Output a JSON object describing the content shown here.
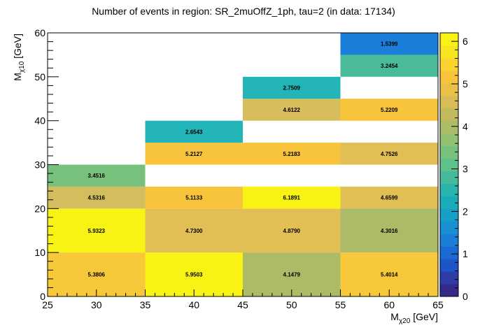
{
  "chart_data": {
    "type": "heatmap",
    "title": "Number of events in region: SR_2muOffZ_1ph, tau=2 (in data: 17134)",
    "xlabel": {
      "main": "M",
      "sub": "χ20",
      "unit": " [GeV]"
    },
    "ylabel": {
      "main": "M",
      "sub": "χ10",
      "unit": " [GeV]"
    },
    "xlim": [
      25,
      65
    ],
    "ylim": [
      0,
      60
    ],
    "zlim": [
      0,
      6.2
    ],
    "x_ticks": [
      "25",
      "30",
      "35",
      "40",
      "45",
      "50",
      "55",
      "60",
      "65"
    ],
    "y_ticks": [
      "0",
      "10",
      "20",
      "30",
      "40",
      "50",
      "60"
    ],
    "z_ticks": [
      "0",
      "1",
      "2",
      "3",
      "4",
      "5",
      "6"
    ],
    "cells": [
      {
        "x0": 25,
        "x1": 35,
        "y0": 0,
        "y1": 10,
        "value": 5.3806,
        "label": "5.3806",
        "color": "#f7c93a"
      },
      {
        "x0": 35,
        "x1": 45,
        "y0": 0,
        "y1": 10,
        "value": 5.9503,
        "label": "5.9503",
        "color": "#f8f314"
      },
      {
        "x0": 45,
        "x1": 55,
        "y0": 0,
        "y1": 10,
        "value": 4.1479,
        "label": "4.1479",
        "color": "#acbb66"
      },
      {
        "x0": 55,
        "x1": 65,
        "y0": 0,
        "y1": 10,
        "value": 5.4014,
        "label": "5.4014",
        "color": "#f7c93a"
      },
      {
        "x0": 25,
        "x1": 35,
        "y0": 10,
        "y1": 20,
        "value": 5.9323,
        "label": "5.9323",
        "color": "#f8f314"
      },
      {
        "x0": 35,
        "x1": 45,
        "y0": 10,
        "y1": 20,
        "value": 4.73,
        "label": "4.7300",
        "color": "#e2bf55"
      },
      {
        "x0": 45,
        "x1": 55,
        "y0": 10,
        "y1": 20,
        "value": 4.879,
        "label": "4.8790",
        "color": "#e2bf55"
      },
      {
        "x0": 55,
        "x1": 65,
        "y0": 10,
        "y1": 20,
        "value": 4.3016,
        "label": "4.3016",
        "color": "#acbb66"
      },
      {
        "x0": 25,
        "x1": 35,
        "y0": 20,
        "y1": 25,
        "value": 4.5316,
        "label": "4.5316",
        "color": "#d4bd5f"
      },
      {
        "x0": 35,
        "x1": 45,
        "y0": 20,
        "y1": 25,
        "value": 5.1133,
        "label": "5.1133",
        "color": "#f7c43c"
      },
      {
        "x0": 45,
        "x1": 55,
        "y0": 20,
        "y1": 25,
        "value": 6.1891,
        "label": "6.1891",
        "color": "#f8f314"
      },
      {
        "x0": 55,
        "x1": 65,
        "y0": 20,
        "y1": 25,
        "value": 4.6599,
        "label": "4.6599",
        "color": "#e0bf55"
      },
      {
        "x0": 25,
        "x1": 35,
        "y0": 25,
        "y1": 30,
        "value": 3.4516,
        "label": "3.4516",
        "color": "#78c17d"
      },
      {
        "x0": 35,
        "x1": 45,
        "y0": 30,
        "y1": 35,
        "value": 5.2127,
        "label": "5.2127",
        "color": "#f7c43c"
      },
      {
        "x0": 45,
        "x1": 55,
        "y0": 30,
        "y1": 35,
        "value": 5.2183,
        "label": "5.2183",
        "color": "#f7c43c"
      },
      {
        "x0": 55,
        "x1": 65,
        "y0": 30,
        "y1": 35,
        "value": 4.7526,
        "label": "4.7526",
        "color": "#e2bf55"
      },
      {
        "x0": 35,
        "x1": 45,
        "y0": 35,
        "y1": 40,
        "value": 2.6543,
        "label": "2.6543",
        "color": "#22b4b6"
      },
      {
        "x0": 45,
        "x1": 55,
        "y0": 40,
        "y1": 45,
        "value": 4.6122,
        "label": "4.6122",
        "color": "#d7bd5c"
      },
      {
        "x0": 55,
        "x1": 65,
        "y0": 40,
        "y1": 45,
        "value": 5.2209,
        "label": "5.2209",
        "color": "#f7c43c"
      },
      {
        "x0": 45,
        "x1": 55,
        "y0": 45,
        "y1": 50,
        "value": 2.7509,
        "label": "2.7509",
        "color": "#22b4b6"
      },
      {
        "x0": 55,
        "x1": 65,
        "y0": 50,
        "y1": 55,
        "value": 3.2454,
        "label": "3.2454",
        "color": "#4abb98"
      },
      {
        "x0": 55,
        "x1": 65,
        "y0": 55,
        "y1": 60,
        "value": 1.5399,
        "label": "1.5399",
        "color": "#1b7ed8"
      }
    ],
    "palette": [
      "#352a87",
      "#2e3da6",
      "#1d55c9",
      "#1a6ad6",
      "#1b7ed8",
      "#1891d2",
      "#16a0c9",
      "#1aacb8",
      "#29b5ad",
      "#45bb9c",
      "#5ec08b",
      "#78c17d",
      "#94c171",
      "#abbd66",
      "#c2bb5d",
      "#d8bc58",
      "#ebc049",
      "#f7c43c",
      "#f9d42f",
      "#f8e522",
      "#f8f314"
    ]
  }
}
